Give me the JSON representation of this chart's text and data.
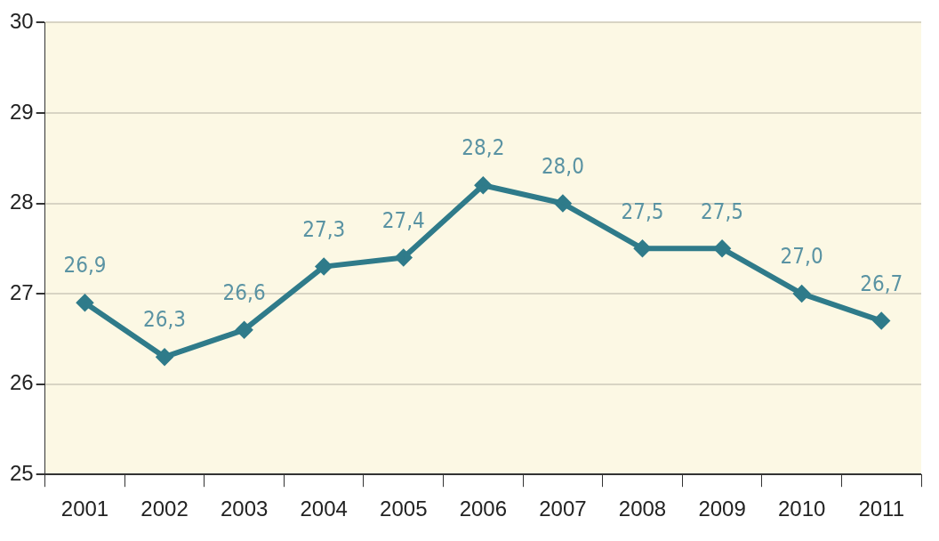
{
  "chart_data": {
    "type": "line",
    "categories": [
      "2001",
      "2002",
      "2003",
      "2004",
      "2005",
      "2006",
      "2007",
      "2008",
      "2009",
      "2010",
      "2011"
    ],
    "series": [
      {
        "color": "#2f7b8a",
        "values": [
          26.9,
          26.3,
          26.6,
          27.3,
          27.4,
          28.2,
          28.0,
          27.5,
          27.5,
          27.0,
          26.7
        ],
        "value_labels": [
          "26,9",
          "26,3",
          "26,6",
          "27,3",
          "27,4",
          "28,2",
          "28,0",
          "27,5",
          "27,5",
          "27,0",
          "26,7"
        ]
      }
    ],
    "ylim": [
      25,
      30
    ],
    "yticks": [
      25,
      26,
      27,
      28,
      29,
      30
    ],
    "grid": "y",
    "legend": false,
    "marker": "diamond",
    "line_style": "solid"
  }
}
